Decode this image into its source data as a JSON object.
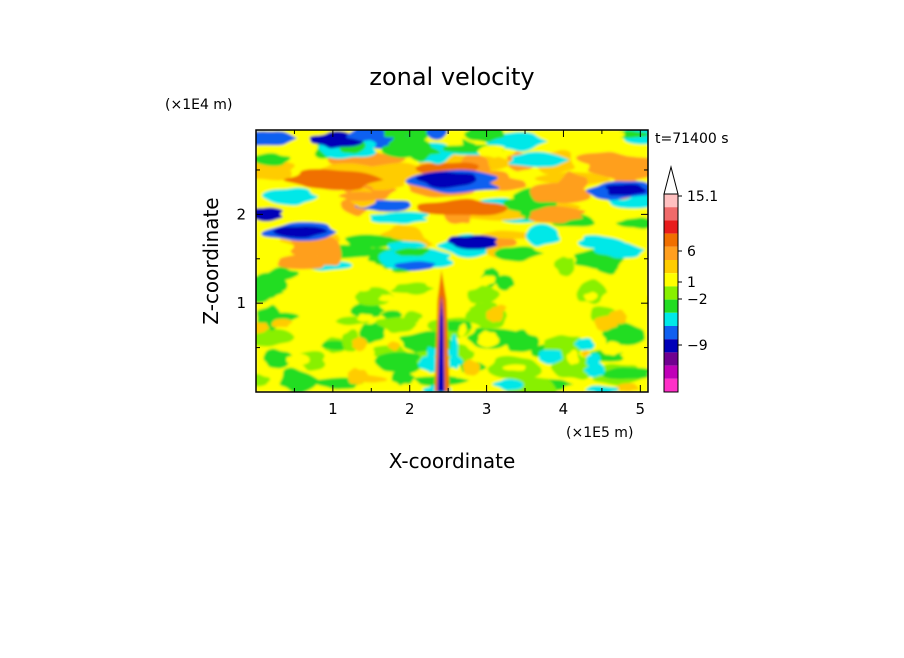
{
  "chart_data": {
    "type": "heatmap",
    "title": "zonal velocity",
    "xlabel": "X-coordinate",
    "ylabel": "Z-coordinate",
    "x_multiplier": "(×1E5 m)",
    "y_multiplier": "(×1E4 m)",
    "time_label": "t=71400 s",
    "xlim": [
      0,
      5.1
    ],
    "ylim": [
      0,
      2.95
    ],
    "xticks": [
      "1",
      "2",
      "3",
      "4",
      "5"
    ],
    "yticks": [
      "1",
      "2"
    ],
    "grid": false,
    "legend": "right",
    "colorbar": {
      "labels": [
        "15.1",
        "6",
        "1",
        "−2",
        "−9"
      ],
      "levels_top_to_bottom": [
        {
          "color": "#ffc0c0"
        },
        {
          "color": "#f06a6a"
        },
        {
          "color": "#e81c1c"
        },
        {
          "color": "#f06f00"
        },
        {
          "color": "#ff9f1f"
        },
        {
          "color": "#ffcc00"
        },
        {
          "color": "#ffff00"
        },
        {
          "color": "#88f000"
        },
        {
          "color": "#22dd22"
        },
        {
          "color": "#00e8e8"
        },
        {
          "color": "#1060f0"
        },
        {
          "color": "#0000b8"
        },
        {
          "color": "#700090"
        },
        {
          "color": "#c000b8"
        },
        {
          "color": "#ff30c8"
        }
      ]
    },
    "field_bands": [
      {
        "z_from": 2.75,
        "z_to": 2.95,
        "pattern": "green/cyan/blue patches",
        "dominant_color": "#22dd22"
      },
      {
        "z_from": 2.35,
        "z_to": 2.75,
        "pattern": "orange band with dark-blue jets",
        "dominant_color": "#ff9f1f"
      },
      {
        "z_from": 1.6,
        "z_to": 2.35,
        "pattern": "blue/cyan band with orange patches",
        "dominant_color": "#0000b8"
      },
      {
        "z_from": 0.0,
        "z_to": 1.6,
        "pattern": "yellow with green patches, narrow vertical jet near x=2.4",
        "dominant_color": "#ffff00"
      }
    ]
  }
}
